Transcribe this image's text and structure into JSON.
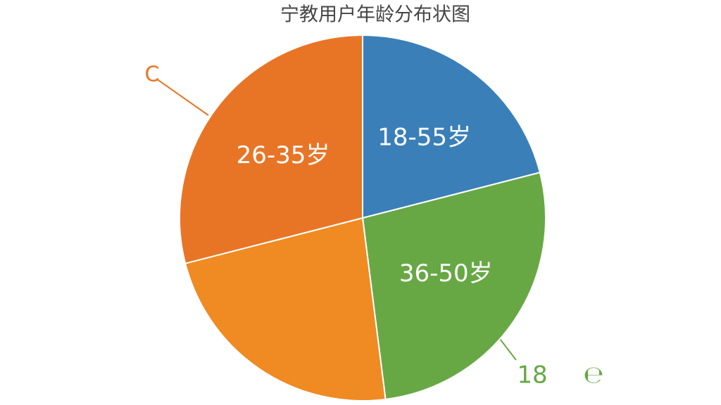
{
  "chart_data": {
    "type": "pie",
    "title": "宁教用户年龄分布状图",
    "categories": [
      "18-55岁",
      "36-50岁",
      null,
      "26-35岁"
    ],
    "values": [
      21,
      27,
      23,
      29
    ],
    "colors": [
      "#3a7fb8",
      "#67a845",
      "#f08a22",
      "#e87526"
    ],
    "annotations": [
      "C",
      "18",
      "℮"
    ]
  }
}
